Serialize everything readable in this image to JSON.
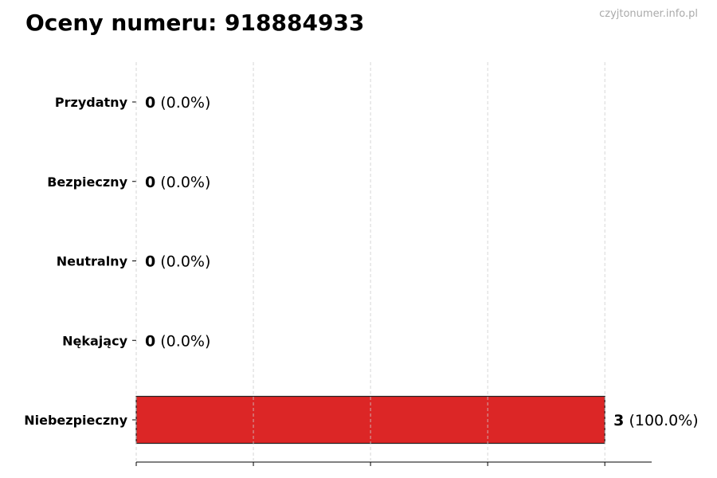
{
  "chart_data": {
    "type": "bar",
    "orientation": "horizontal",
    "title": "Oceny numeru: 918884933",
    "watermark": "czyjtonumer.info.pl",
    "categories": [
      "Przydatny",
      "Bezpieczny",
      "Neutralny",
      "Nękający",
      "Niebezpieczny"
    ],
    "values": [
      0,
      0,
      0,
      0,
      3
    ],
    "value_labels": [
      "0",
      "0",
      "0",
      "0",
      "3"
    ],
    "percent_labels": [
      "(0.0%)",
      "(0.0%)",
      "(0.0%)",
      "(0.0%)",
      "(100.0%)"
    ],
    "xlim": [
      0,
      3.3
    ],
    "xticks": [
      0,
      0.75,
      1.5,
      2.25,
      3
    ],
    "grid": "x-dashed",
    "bar_color": "#dc2626",
    "xlabel": "",
    "ylabel": ""
  }
}
